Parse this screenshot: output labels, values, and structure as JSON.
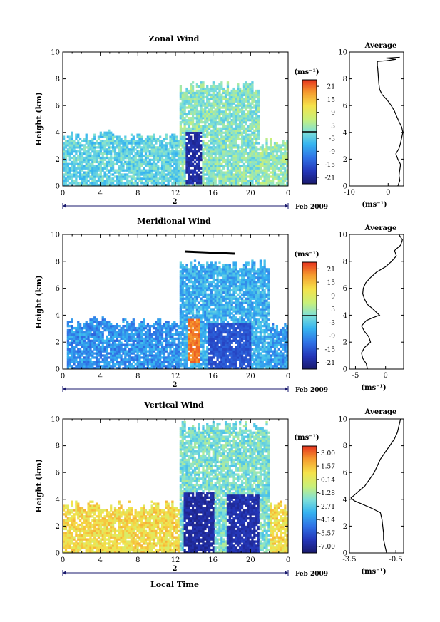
{
  "figure": {
    "date_label": "Feb 2009",
    "day_label": "2",
    "xlabel": "Local Time"
  },
  "panels": [
    {
      "title": "Zonal Wind",
      "ylabel": "Height (km)",
      "xticks": [
        "0",
        "4",
        "8",
        "12",
        "16",
        "20",
        "0"
      ],
      "yticks": [
        "0",
        "2",
        "4",
        "6",
        "8",
        "10"
      ],
      "colorbar": {
        "unit": "(ms⁻¹)",
        "ticks": [
          "21",
          "15",
          "9",
          "3",
          "-3",
          "-9",
          "-15",
          "-21"
        ]
      },
      "average": {
        "title": "Average",
        "xticks": [
          "-10",
          "0"
        ],
        "yticks": [
          "0",
          "2",
          "4",
          "6",
          "8",
          "10"
        ],
        "xlabel": "(ms⁻¹)"
      }
    },
    {
      "title": "Meridional Wind",
      "ylabel": "Height (km)",
      "xticks": [
        "0",
        "4",
        "8",
        "12",
        "16",
        "20",
        "0"
      ],
      "yticks": [
        "0",
        "2",
        "4",
        "6",
        "8",
        "10"
      ],
      "colorbar": {
        "unit": "(ms⁻¹)",
        "ticks": [
          "21",
          "15",
          "9",
          "3",
          "-3",
          "-9",
          "-15",
          "-21"
        ]
      },
      "average": {
        "title": "Average",
        "xticks": [
          "-5",
          "0"
        ],
        "yticks": [
          "0",
          "2",
          "4",
          "6",
          "8",
          "10"
        ],
        "xlabel": "(ms⁻¹)"
      }
    },
    {
      "title": "Vertical Wind",
      "ylabel": "Height (km)",
      "xticks": [
        "0",
        "4",
        "8",
        "12",
        "16",
        "20",
        "0"
      ],
      "yticks": [
        "0",
        "2",
        "4",
        "6",
        "8",
        "10"
      ],
      "colorbar": {
        "unit": "(ms⁻¹)",
        "ticks": [
          "3.00",
          "1.57",
          "0.14",
          "-1.28",
          "-2.71",
          "-4.14",
          "-5.57",
          "-7.00"
        ]
      },
      "average": {
        "title": "Average",
        "xticks": [
          "-3.5",
          "-0.5"
        ],
        "yticks": [
          "0",
          "2",
          "4",
          "6",
          "8",
          "10"
        ],
        "xlabel": "(ms⁻¹)"
      }
    }
  ],
  "chart_data": [
    {
      "type": "heatmap",
      "title": "Zonal Wind",
      "ylabel": "Height (km)",
      "xlim": [
        0,
        24
      ],
      "ylim": [
        0,
        10
      ],
      "color_scale": {
        "min": -24,
        "max": 24,
        "unit": "(ms⁻¹)"
      },
      "description_values": {
        "coverage": [
          {
            "t0": 0,
            "t1": 12.5,
            "h_top": 3.8,
            "typical_value": -2
          },
          {
            "t0": 12.5,
            "t1": 21,
            "h_top": 7.5,
            "typical_value": 1
          },
          {
            "t0": 21,
            "t1": 24,
            "h_top": 3.2,
            "typical_value": 2
          }
        ],
        "features": [
          {
            "t0": 13.2,
            "t1": 14.8,
            "h0": 0.2,
            "h1": 4.0,
            "value": -20
          }
        ]
      }
    },
    {
      "type": "line",
      "title": "Average",
      "xlabel": "(ms⁻¹)",
      "xlim": [
        -10,
        4
      ],
      "ylim": [
        0,
        10
      ],
      "x": [
        2.5,
        3,
        2.8,
        3,
        3.2,
        2.5,
        2,
        2.8,
        3.2,
        3.5,
        3.8,
        3.5,
        2.8,
        2.2,
        1.6,
        0.8,
        -0.2,
        -1.5,
        -2.2,
        -2.4,
        -2.5,
        -2.6,
        -2.7,
        -2.8,
        -2.8,
        -2.8,
        -0.5,
        2,
        -0.5,
        3
      ],
      "y": [
        0,
        0.4,
        0.8,
        1.2,
        1.6,
        2.0,
        2.4,
        2.8,
        3.2,
        3.6,
        4.0,
        4.4,
        4.8,
        5.2,
        5.6,
        6.0,
        6.4,
        6.8,
        7.2,
        7.6,
        8.0,
        8.4,
        8.8,
        9.0,
        9.2,
        9.3,
        9.35,
        9.45,
        9.55,
        9.6
      ]
    },
    {
      "type": "heatmap",
      "title": "Meridional Wind",
      "ylabel": "Height (km)",
      "xlim": [
        0,
        24
      ],
      "ylim": [
        0,
        10
      ],
      "color_scale": {
        "min": -24,
        "max": 24,
        "unit": "(ms⁻¹)"
      },
      "description_values": {
        "coverage": [
          {
            "t0": 0.5,
            "t1": 12.5,
            "h_top": 3.5,
            "typical_value": -9
          },
          {
            "t0": 12.5,
            "t1": 22,
            "h_top": 7.8,
            "typical_value": -6
          },
          {
            "t0": 22,
            "t1": 24,
            "h_top": 3.2,
            "typical_value": -8
          }
        ],
        "features": [
          {
            "t0": 13.3,
            "t1": 14.6,
            "h0": 0.5,
            "h1": 3.8,
            "value": 20
          },
          {
            "t0": 15.5,
            "t1": 20,
            "h0": 0,
            "h1": 3.5,
            "value": -15
          }
        ]
      }
    },
    {
      "type": "line",
      "title": "Average",
      "xlabel": "(ms⁻¹)",
      "xlim": [
        -6,
        3
      ],
      "ylim": [
        0,
        10
      ],
      "x": [
        -3,
        -3.2,
        -3.8,
        -4,
        -3.5,
        -2.5,
        -2.8,
        -3.5,
        -4,
        -3.2,
        -2.2,
        -1,
        -1.5,
        -2.2,
        -3,
        -3.5,
        -3.8,
        -3.7,
        -3.3,
        -2.5,
        -1.5,
        0,
        1,
        1.8,
        1.5,
        2.5,
        2.8,
        2.2
      ],
      "y": [
        0,
        0.4,
        0.8,
        1.2,
        1.6,
        2.0,
        2.4,
        2.8,
        3.2,
        3.6,
        3.8,
        4.0,
        4.2,
        4.5,
        4.8,
        5.2,
        5.6,
        6.0,
        6.4,
        6.8,
        7.2,
        7.6,
        8.0,
        8.4,
        8.8,
        9.2,
        9.6,
        10
      ]
    },
    {
      "type": "heatmap",
      "title": "Vertical Wind",
      "ylabel": "Height (km)",
      "xlim": [
        0,
        24
      ],
      "ylim": [
        0,
        10
      ],
      "color_scale": {
        "min": -7,
        "max": 3,
        "unit": "(ms⁻¹)"
      },
      "description_values": {
        "coverage": [
          {
            "t0": 0,
            "t1": 12.5,
            "h_top": 3.5,
            "typical_value": 0.5
          },
          {
            "t0": 12.5,
            "t1": 22,
            "h_top": 9.5,
            "typical_value": -2
          },
          {
            "t0": 22,
            "t1": 24,
            "h_top": 3.5,
            "typical_value": 0.5
          }
        ],
        "features": [
          {
            "t0": 12.8,
            "t1": 16.2,
            "h0": 0,
            "h1": 4.5,
            "value": -6.2
          },
          {
            "t0": 17.5,
            "t1": 21,
            "h0": 0,
            "h1": 4.3,
            "value": -6
          }
        ]
      }
    },
    {
      "type": "line",
      "title": "Average",
      "xlabel": "(ms⁻¹)",
      "xlim": [
        -3.5,
        0
      ],
      "ylim": [
        0,
        10
      ],
      "x": [
        -1.1,
        -1.2,
        -1.3,
        -1.3,
        -1.35,
        -1.4,
        -1.5,
        -2.0,
        -2.4,
        -2.8,
        -3.2,
        -3.4,
        -3.2,
        -2.9,
        -2.5,
        -2.2,
        -1.9,
        -1.7,
        -1.5,
        -1.2,
        -0.9,
        -0.6,
        -0.4,
        -0.3,
        -0.2
      ],
      "y": [
        0,
        0.5,
        1.0,
        1.5,
        2.0,
        2.5,
        3.0,
        3.3,
        3.5,
        3.7,
        3.9,
        4.1,
        4.3,
        4.6,
        5.0,
        5.5,
        6.0,
        6.5,
        7.0,
        7.5,
        8.0,
        8.5,
        9.0,
        9.5,
        10
      ]
    }
  ]
}
